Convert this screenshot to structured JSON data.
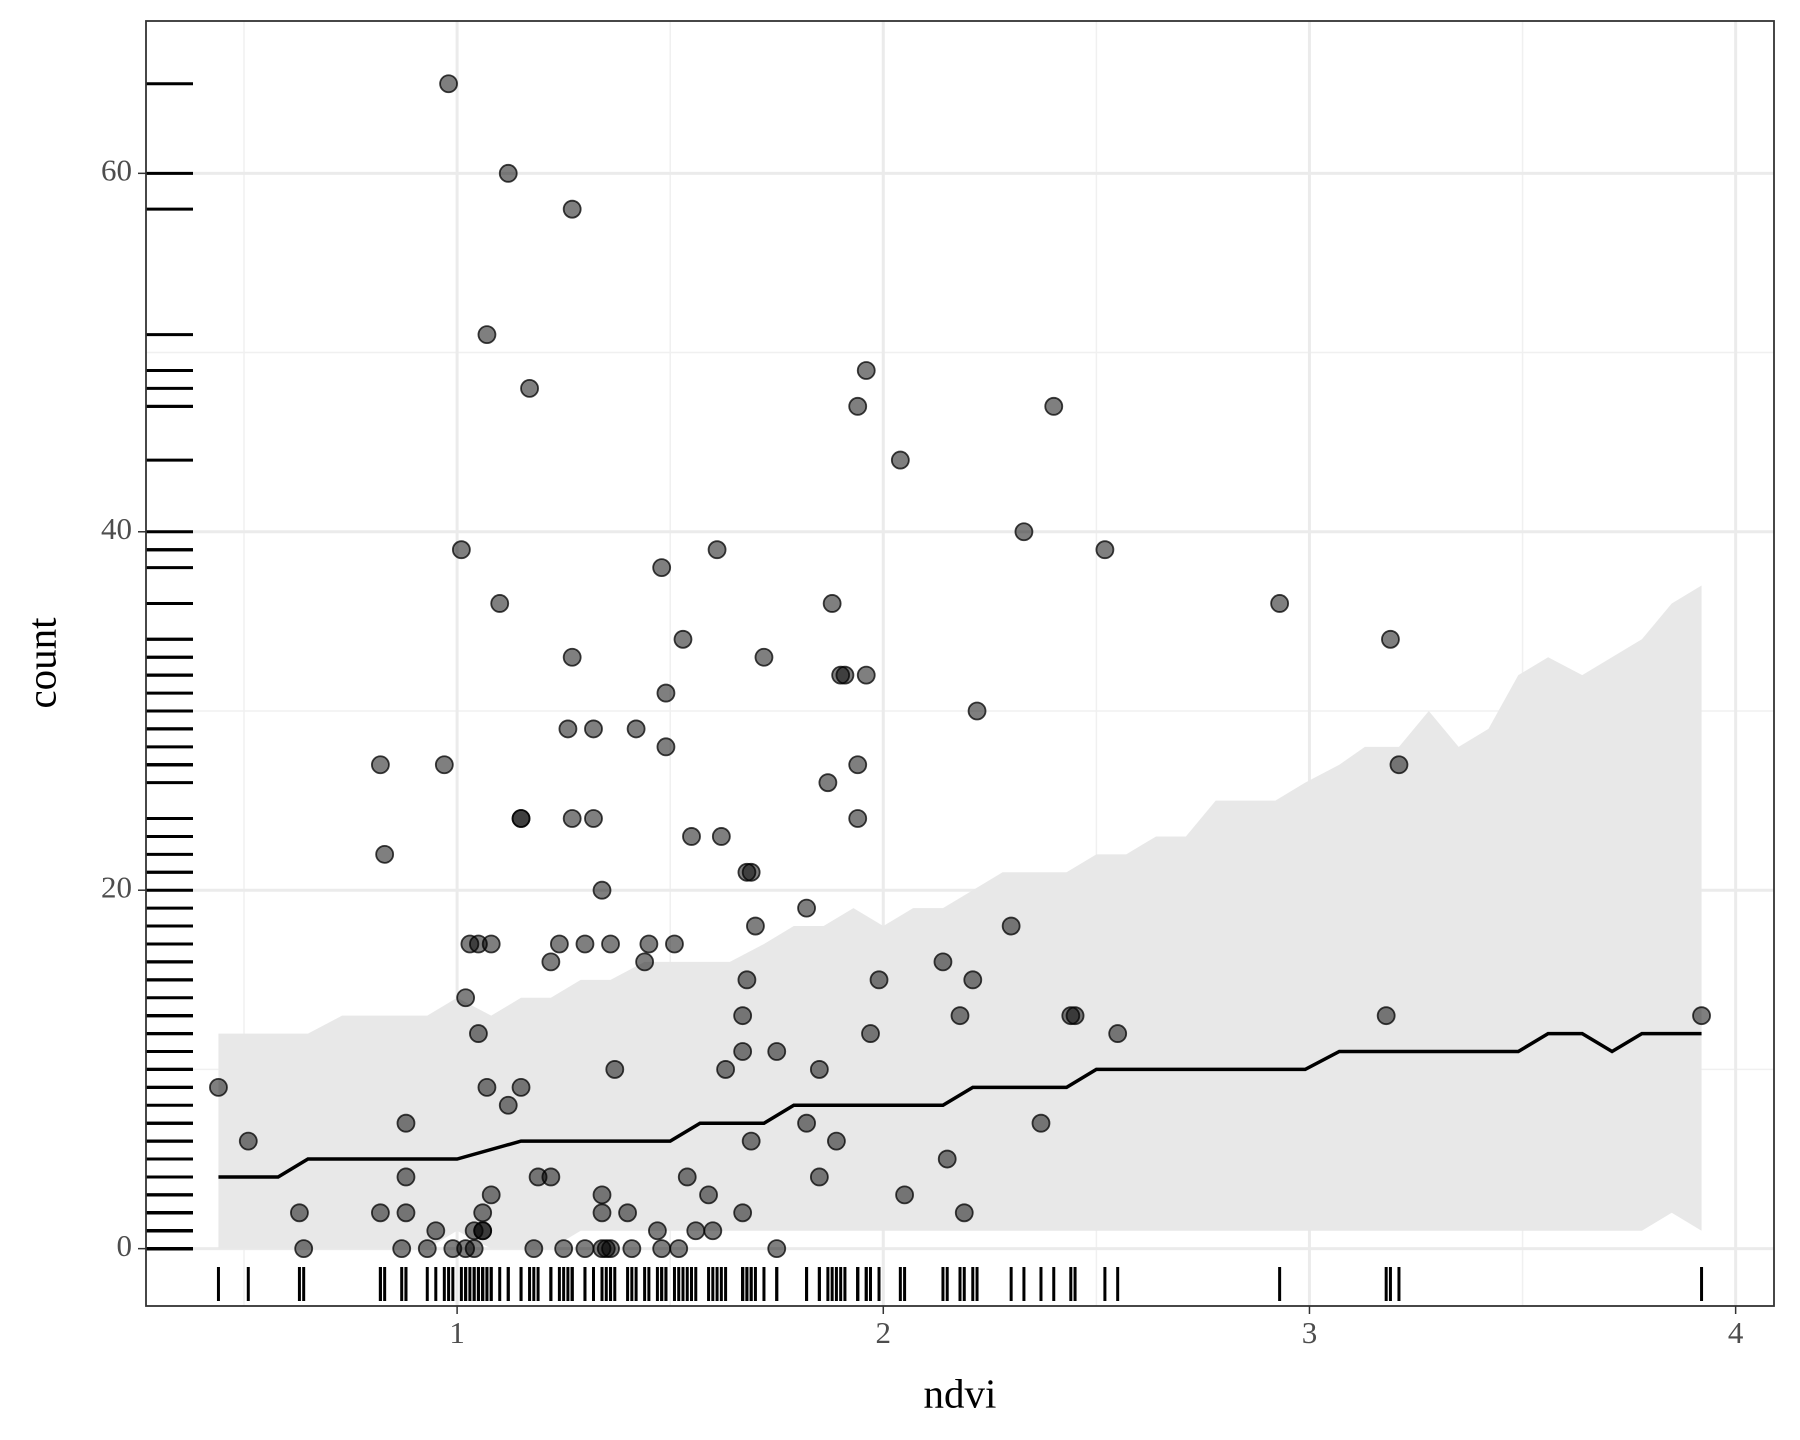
{
  "chart_data": {
    "type": "scatter",
    "xlabel": "ndvi",
    "ylabel": "count",
    "xlim": [
      0.27,
      4.09
    ],
    "ylim": [
      -3.2,
      68.5
    ],
    "xticks": [
      1,
      2,
      3,
      4
    ],
    "yticks": [
      0,
      20,
      40,
      60
    ],
    "xminor": [
      0.5,
      1.5,
      2.5,
      3.5
    ],
    "yminor": [
      10,
      30,
      50
    ],
    "grid": true,
    "rug": true,
    "points": {
      "color": "#000000",
      "x": [
        0.44,
        0.51,
        0.63,
        0.64,
        0.82,
        0.83,
        0.82,
        0.87,
        0.88,
        0.88,
        0.88,
        0.93,
        0.95,
        0.97,
        0.98,
        0.99,
        1.01,
        1.02,
        1.02,
        1.03,
        1.04,
        1.04,
        1.05,
        1.05,
        1.06,
        1.06,
        1.06,
        1.07,
        1.07,
        1.08,
        1.08,
        1.1,
        1.12,
        1.12,
        1.15,
        1.15,
        1.15,
        1.17,
        1.18,
        1.19,
        1.22,
        1.22,
        1.24,
        1.25,
        1.26,
        1.27,
        1.27,
        1.27,
        1.3,
        1.3,
        1.32,
        1.32,
        1.34,
        1.34,
        1.34,
        1.34,
        1.35,
        1.36,
        1.36,
        1.37,
        1.4,
        1.41,
        1.42,
        1.44,
        1.45,
        1.47,
        1.48,
        1.48,
        1.49,
        1.49,
        1.51,
        1.52,
        1.53,
        1.54,
        1.55,
        1.56,
        1.59,
        1.6,
        1.61,
        1.62,
        1.63,
        1.67,
        1.67,
        1.67,
        1.68,
        1.68,
        1.69,
        1.69,
        1.7,
        1.72,
        1.75,
        1.75,
        1.82,
        1.82,
        1.85,
        1.85,
        1.87,
        1.88,
        1.89,
        1.9,
        1.91,
        1.94,
        1.94,
        1.94,
        1.96,
        1.96,
        1.97,
        1.99,
        2.04,
        2.05,
        2.14,
        2.15,
        2.18,
        2.19,
        2.21,
        2.22,
        2.3,
        2.33,
        2.37,
        2.4,
        2.44,
        2.45,
        2.52,
        2.55,
        2.93,
        3.18,
        3.19,
        3.21,
        3.92
      ],
      "values": [
        9,
        6,
        2,
        0,
        27,
        22,
        2,
        0,
        2,
        4,
        7,
        0,
        1,
        27,
        65,
        0,
        39,
        14,
        0,
        17,
        0,
        1,
        17,
        12,
        1,
        2,
        1,
        51,
        9,
        17,
        3,
        36,
        60,
        8,
        9,
        24,
        24,
        48,
        0,
        4,
        4,
        16,
        17,
        0,
        29,
        58,
        24,
        33,
        0,
        17,
        29,
        24,
        2,
        3,
        20,
        0,
        0,
        0,
        17,
        10,
        2,
        0,
        29,
        16,
        17,
        1,
        38,
        0,
        28,
        31,
        17,
        0,
        34,
        4,
        23,
        1,
        3,
        1,
        39,
        23,
        10,
        2,
        11,
        13,
        15,
        21,
        21,
        6,
        18,
        33,
        0,
        11,
        19,
        7,
        4,
        10,
        26,
        36,
        6,
        32,
        32,
        47,
        27,
        24,
        32,
        49,
        12,
        15,
        44,
        3,
        16,
        5,
        13,
        2,
        15,
        30,
        18,
        40,
        7,
        47,
        13,
        13,
        39,
        12,
        36,
        13,
        34,
        27,
        13
      ]
    },
    "line": {
      "color": "#000000",
      "x": [
        0.44,
        0.58,
        0.65,
        1.0,
        1.15,
        1.5,
        1.57,
        1.72,
        1.79,
        2.14,
        2.21,
        2.43,
        2.5,
        2.99,
        3.07,
        3.49,
        3.56,
        3.64,
        3.71,
        3.78,
        3.92
      ],
      "values": [
        4,
        4,
        5,
        5,
        6,
        6,
        7,
        7,
        8,
        8,
        9,
        9,
        10,
        10,
        11,
        11,
        12,
        12,
        11,
        12,
        12
      ]
    },
    "ribbon": {
      "color": "#e8e8e8",
      "x": [
        0.44,
        0.65,
        0.73,
        0.93,
        1.0,
        1.08,
        1.15,
        1.22,
        1.29,
        1.36,
        1.44,
        1.64,
        1.72,
        1.79,
        1.86,
        1.93,
        2.0,
        2.07,
        2.14,
        2.21,
        2.28,
        2.43,
        2.5,
        2.57,
        2.64,
        2.71,
        2.78,
        2.92,
        2.99,
        3.07,
        3.13,
        3.21,
        3.28,
        3.35,
        3.42,
        3.49,
        3.56,
        3.64,
        3.78,
        3.85,
        3.92
      ],
      "upper": [
        12,
        12,
        13,
        13,
        14,
        13,
        14,
        14,
        15,
        15,
        16,
        16,
        17,
        18,
        18,
        19,
        18,
        19,
        19,
        20,
        21,
        21,
        22,
        22,
        23,
        23,
        25,
        25,
        26,
        27,
        28,
        28,
        30,
        28,
        29,
        32,
        33,
        32,
        34,
        36,
        37
      ],
      "lower": [
        0,
        0,
        0,
        0,
        1,
        0,
        0,
        0,
        1,
        1,
        1,
        1,
        1,
        1,
        1,
        1,
        1,
        1,
        1,
        1,
        1,
        1,
        1,
        1,
        1,
        1,
        1,
        1,
        1,
        1,
        1,
        1,
        1,
        1,
        1,
        1,
        1,
        1,
        1,
        2,
        1
      ]
    }
  }
}
